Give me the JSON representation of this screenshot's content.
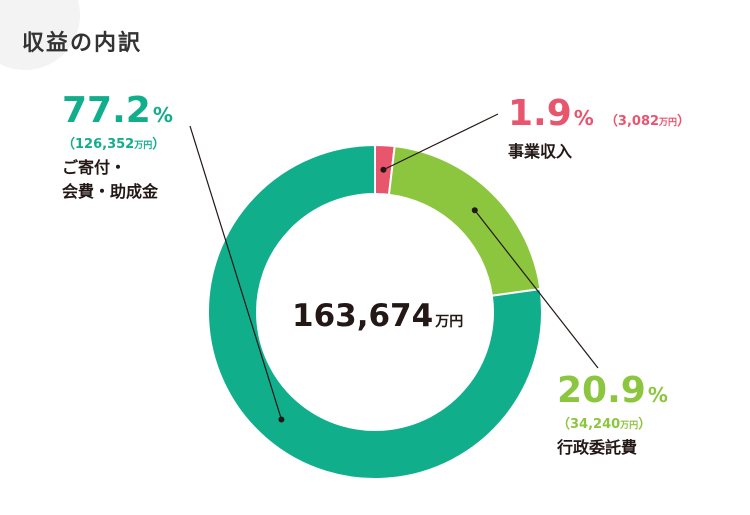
{
  "title": "収益の内訳",
  "center": {
    "total": "163,674",
    "unit": "万円"
  },
  "segments": [
    {
      "percent": "1.9",
      "percent_sign": "%",
      "amount_open": "（3,082",
      "amount_unit": "万円",
      "amount_close": "）",
      "category_lines": [
        "事業収入"
      ],
      "color": "#e8566e"
    },
    {
      "percent": "20.9",
      "percent_sign": "%",
      "amount_open": "（34,240",
      "amount_unit": "万円",
      "amount_close": "）",
      "category_lines": [
        "行政委託費"
      ],
      "color": "#8cc63f"
    },
    {
      "percent": "77.2",
      "percent_sign": "%",
      "amount_open": "（126,352",
      "amount_unit": "万円",
      "amount_close": "）",
      "category_lines": [
        "ご寄付・",
        "会費・助成金"
      ],
      "color": "#11ae8c"
    }
  ],
  "chart_data": {
    "type": "pie",
    "variant": "donut",
    "title": "収益の内訳",
    "center_label": "163,674万円",
    "unit": "万円",
    "categories": [
      "事業収入",
      "行政委託費",
      "ご寄付・会費・助成金"
    ],
    "values": [
      3082,
      34240,
      126352
    ],
    "percentages": [
      1.9,
      20.9,
      77.2
    ],
    "total": 163674,
    "colors": [
      "#e8566e",
      "#8cc63f",
      "#11ae8c"
    ],
    "start_angle": "12 o'clock",
    "direction": "clockwise"
  }
}
